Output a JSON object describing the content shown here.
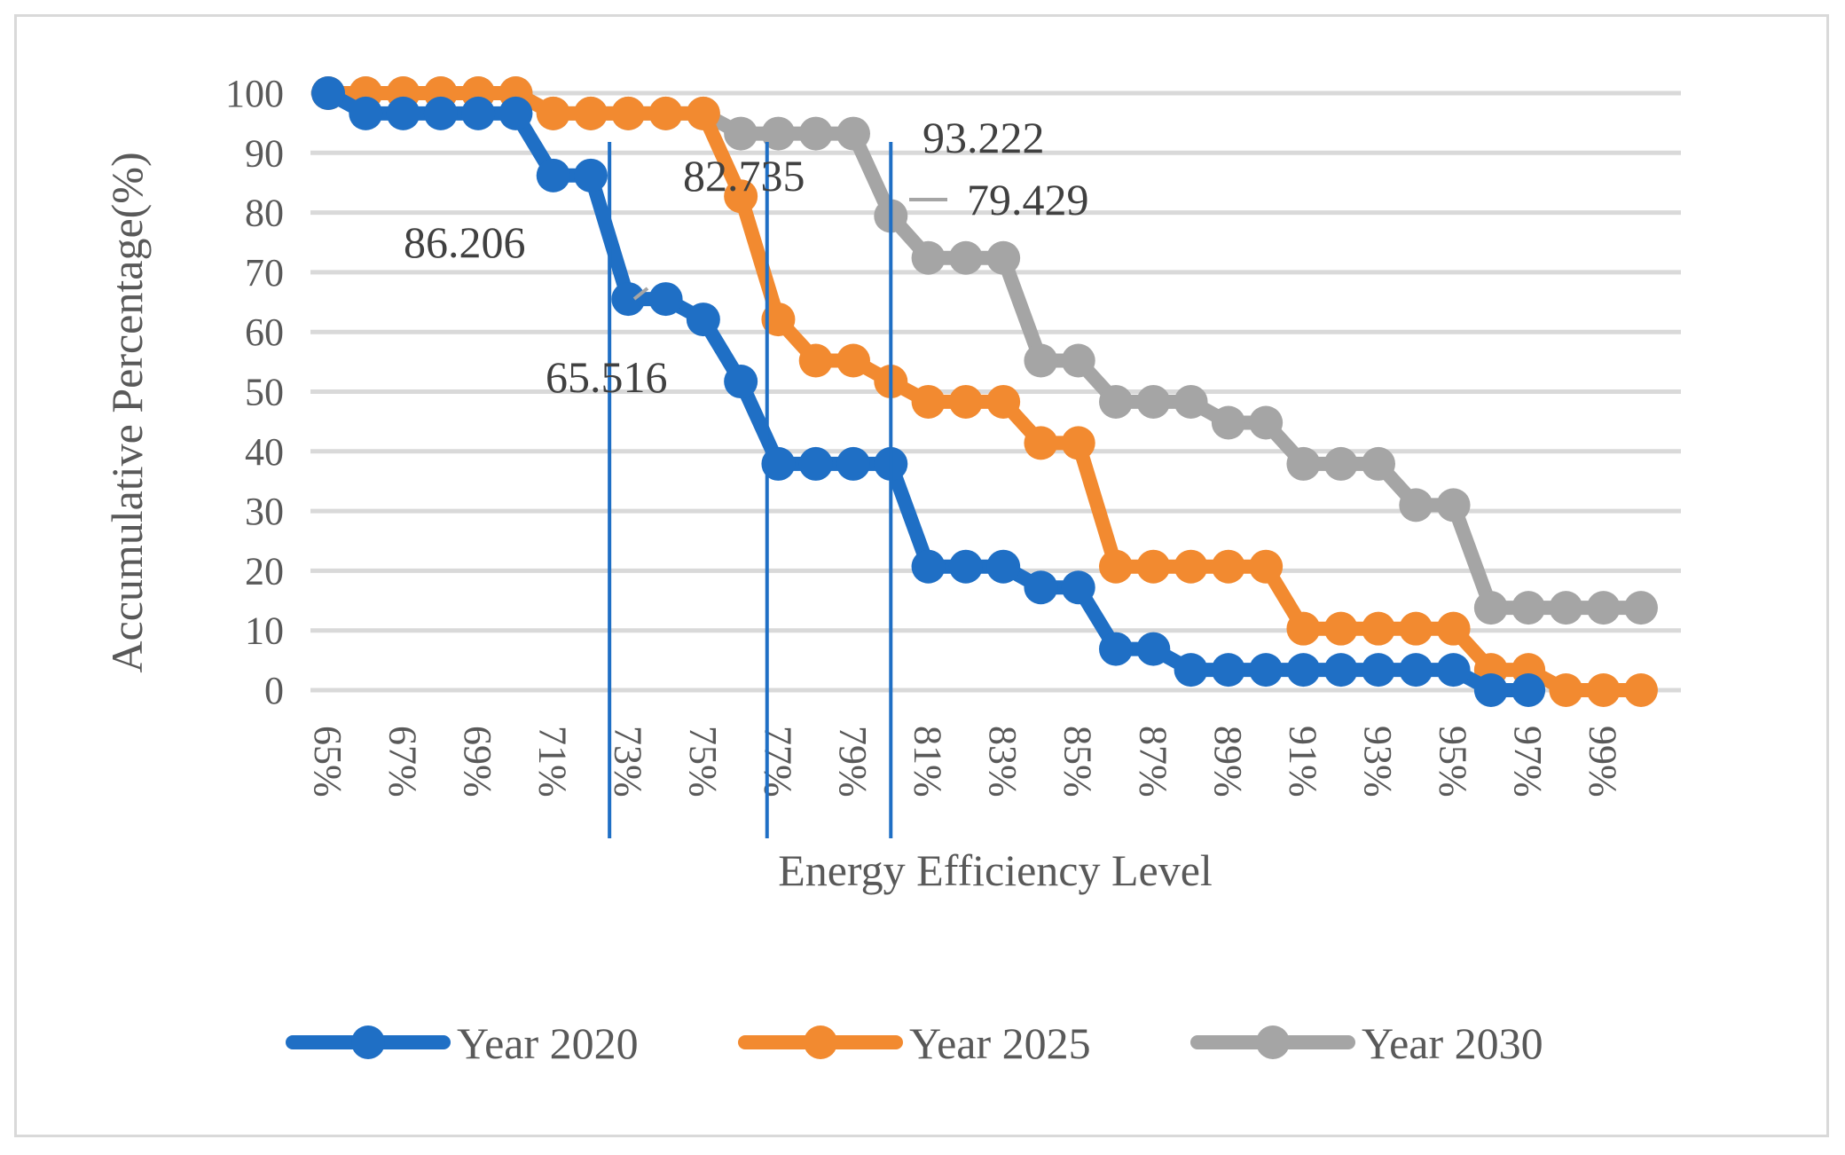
{
  "chart_data": {
    "type": "line",
    "title": "",
    "xlabel": "Energy Efficiency Level",
    "ylabel": "Accumulative Percentage(%)",
    "ylim": [
      0,
      100
    ],
    "y_ticks": [
      "0",
      "10",
      "20",
      "30",
      "40",
      "50",
      "60",
      "70",
      "80",
      "90",
      "100"
    ],
    "x_tick_labels": [
      "65%",
      "67%",
      "69%",
      "71%",
      "73%",
      "75%",
      "77%",
      "79%",
      "81%",
      "83%",
      "85%",
      "87%",
      "89%",
      "91%",
      "93%",
      "95%",
      "97%",
      "99%"
    ],
    "grid": true,
    "legend_position": "bottom",
    "x": [
      65,
      66,
      67,
      68,
      69,
      70,
      71,
      72,
      73,
      74,
      75,
      76,
      77,
      78,
      79,
      80,
      81,
      82,
      83,
      84,
      85,
      86,
      87,
      88,
      89,
      90,
      91,
      92,
      93,
      94,
      95,
      96,
      97,
      98,
      99,
      100
    ],
    "series": [
      {
        "name": "Year 2020",
        "color": "#1f6fc5",
        "values": [
          100,
          96.6,
          96.6,
          96.6,
          96.6,
          96.6,
          86.206,
          86.206,
          65.516,
          65.516,
          62.1,
          51.7,
          37.9,
          37.9,
          37.9,
          37.9,
          20.7,
          20.7,
          20.7,
          17.2,
          17.2,
          6.9,
          6.9,
          3.4,
          3.4,
          3.4,
          3.4,
          3.4,
          3.4,
          3.4,
          3.4,
          0,
          0,
          null,
          null,
          null
        ]
      },
      {
        "name": "Year 2025",
        "color": "#f28a30",
        "values": [
          100,
          100,
          100,
          100,
          100,
          100,
          96.6,
          96.6,
          96.6,
          96.6,
          96.6,
          82.735,
          62.1,
          55.2,
          55.2,
          51.7,
          48.3,
          48.3,
          48.3,
          41.4,
          41.4,
          20.7,
          20.7,
          20.7,
          20.7,
          20.7,
          10.3,
          10.3,
          10.3,
          10.3,
          10.3,
          3.4,
          3.4,
          0,
          0,
          0
        ]
      },
      {
        "name": "Year 2030",
        "color": "#a5a5a5",
        "values": [
          100,
          100,
          100,
          100,
          100,
          100,
          96.6,
          96.6,
          96.6,
          96.6,
          96.6,
          93.222,
          93.222,
          93.222,
          93.222,
          79.429,
          72.4,
          72.4,
          72.4,
          55.2,
          55.2,
          48.3,
          48.3,
          48.3,
          44.8,
          44.8,
          37.9,
          37.9,
          37.9,
          31.0,
          31.0,
          13.8,
          13.8,
          13.8,
          13.8,
          13.8
        ]
      }
    ],
    "annotations": [
      {
        "text": "86.206",
        "series": "Year 2020"
      },
      {
        "text": "65.516",
        "series": "Year 2020"
      },
      {
        "text": "82.735",
        "series": "Year 2025"
      },
      {
        "text": "93.222",
        "series": "Year 2030"
      },
      {
        "text": "79.429",
        "series": "Year 2030"
      }
    ],
    "marker_lines_x": [
      72.5,
      76.7,
      80.0
    ]
  }
}
